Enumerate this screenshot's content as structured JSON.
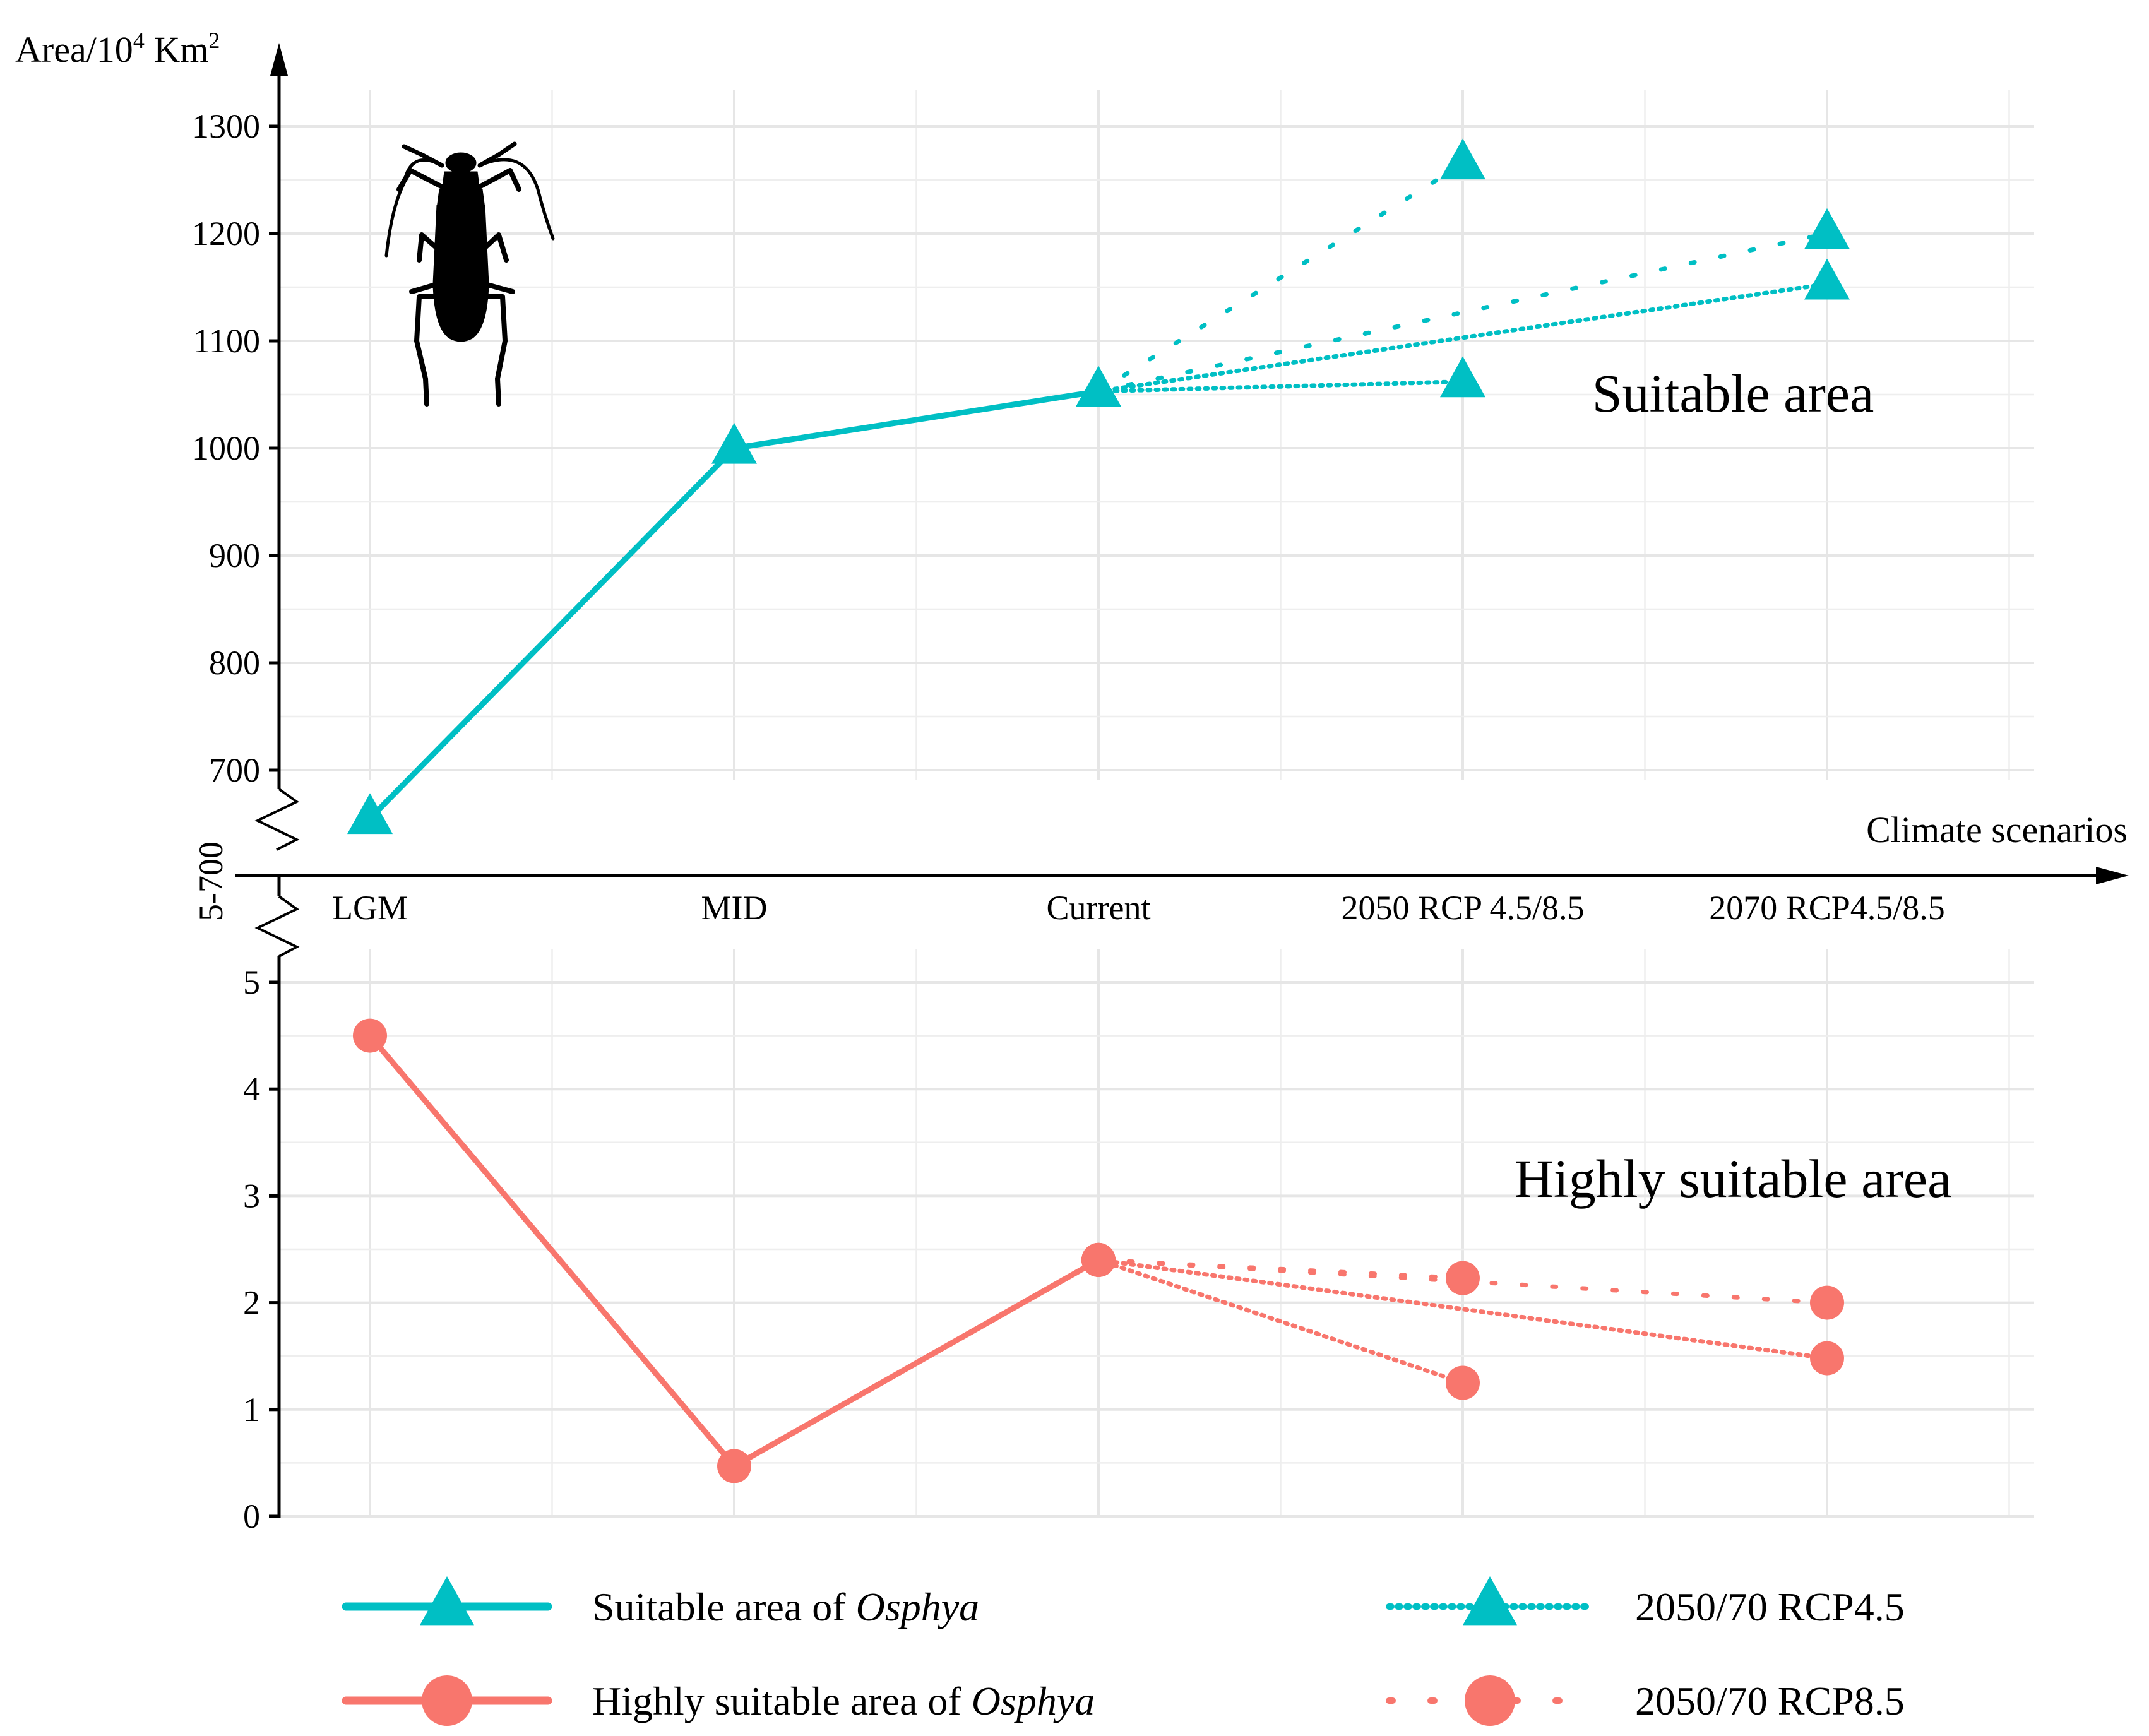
{
  "chart_data": {
    "type": "line",
    "x_axis": {
      "title": "Climate scenarios",
      "categories": [
        "LGM",
        "MID",
        "Current",
        "2050 RCP 4.5/8.5",
        "2070 RCP4.5/8.5"
      ]
    },
    "y_axis": {
      "title_base": "Area/10",
      "title_exp": "4",
      "title_unit": " Km",
      "title_unit_exp": "2",
      "break_label": "5-700",
      "upper_range": [
        700,
        1300
      ],
      "upper_ticks": [
        "700",
        "800",
        "900",
        "1000",
        "1100",
        "1200",
        "1300"
      ],
      "lower_range": [
        0,
        5
      ],
      "lower_ticks": [
        "0",
        "1",
        "2",
        "3",
        "4",
        "5"
      ]
    },
    "panels": {
      "upper_label": "Suitable area",
      "lower_label": "Highly suitable area"
    },
    "series": [
      {
        "panel": "upper",
        "style": "solid",
        "marker": "triangle",
        "color": "#00BFC4",
        "points": [
          [
            "LGM",
            655
          ],
          [
            "MID",
            1000
          ],
          [
            "Current",
            1053
          ]
        ]
      },
      {
        "panel": "upper",
        "style": "dense-dotted",
        "marker": "triangle",
        "color": "#00BFC4",
        "points": [
          [
            "Current",
            1053
          ],
          [
            "2050 RCP 4.5/8.5",
            1062
          ]
        ]
      },
      {
        "panel": "upper",
        "style": "dense-dotted",
        "marker": "triangle",
        "color": "#00BFC4",
        "points": [
          [
            "Current",
            1053
          ],
          [
            "2070 RCP4.5/8.5",
            1153
          ]
        ]
      },
      {
        "panel": "upper",
        "style": "sparse-dotted",
        "marker": "triangle",
        "color": "#00BFC4",
        "points": [
          [
            "Current",
            1053
          ],
          [
            "2050 RCP 4.5/8.5",
            1265
          ]
        ]
      },
      {
        "panel": "upper",
        "style": "sparse-dotted",
        "marker": "triangle",
        "color": "#00BFC4",
        "points": [
          [
            "Current",
            1053
          ],
          [
            "2070 RCP4.5/8.5",
            1200
          ]
        ]
      },
      {
        "panel": "lower",
        "style": "solid",
        "marker": "circle",
        "color": "#F8766D",
        "points": [
          [
            "LGM",
            4.5
          ],
          [
            "MID",
            0.47
          ],
          [
            "Current",
            2.4
          ]
        ]
      },
      {
        "panel": "lower",
        "style": "dense-dotted",
        "marker": "circle",
        "color": "#F8766D",
        "points": [
          [
            "Current",
            2.4
          ],
          [
            "2050 RCP 4.5/8.5",
            1.25
          ]
        ]
      },
      {
        "panel": "lower",
        "style": "dense-dotted",
        "marker": "circle",
        "color": "#F8766D",
        "points": [
          [
            "Current",
            2.4
          ],
          [
            "2070 RCP4.5/8.5",
            1.48
          ]
        ]
      },
      {
        "panel": "lower",
        "style": "sparse-dotted",
        "marker": "circle",
        "color": "#F8766D",
        "points": [
          [
            "Current",
            2.4
          ],
          [
            "2050 RCP 4.5/8.5",
            2.23
          ]
        ]
      },
      {
        "panel": "lower",
        "style": "sparse-dotted",
        "marker": "circle",
        "color": "#F8766D",
        "points": [
          [
            "Current",
            2.4
          ],
          [
            "2070 RCP4.5/8.5",
            2.0
          ]
        ]
      }
    ],
    "legend": {
      "placement": "bottom",
      "items": [
        {
          "prefix": "Suitable area of ",
          "italic": "Osphya",
          "style": "solid",
          "marker": "triangle",
          "color": "#00BFC4"
        },
        {
          "prefix": "Highly suitable area of ",
          "italic": "Osphya",
          "style": "solid",
          "marker": "circle",
          "color": "#F8766D"
        },
        {
          "prefix": "2050/70 RCP4.5",
          "italic": "",
          "style": "dense-dotted",
          "marker": "triangle",
          "color": "#00BFC4"
        },
        {
          "prefix": "2050/70 RCP8.5",
          "italic": "",
          "style": "sparse-dotted",
          "marker": "circle",
          "color": "#F8766D"
        }
      ]
    },
    "grid": true
  },
  "icon": "beetle-silhouette-icon"
}
